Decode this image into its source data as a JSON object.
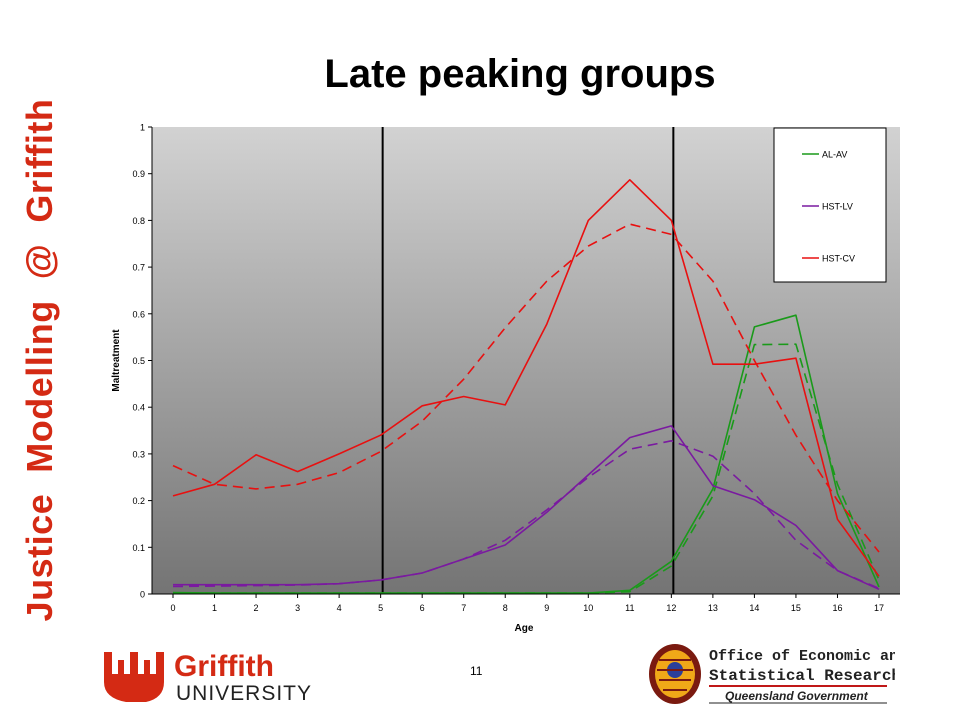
{
  "sidebar": {
    "word1": "Justice",
    "word2": "Modelling",
    "word3": "@",
    "word4": "Griffith"
  },
  "slide": {
    "title": "Late peaking groups",
    "page_number": "11"
  },
  "logos": {
    "griffith_name": "Griffith",
    "griffith_sub": "UNIVERSITY",
    "oesr_line1": "Office of Economic and",
    "oesr_line2": "Statistical Research",
    "oesr_line3": "Queensland Government"
  },
  "colors": {
    "accent_red": "#d42a14",
    "green": "#1a9a1a",
    "purple": "#7a1aa0",
    "red": "#e81010"
  },
  "chart_data": {
    "type": "line",
    "xlabel": "Age",
    "ylabel": "Maltreatment",
    "ylim": [
      0,
      1
    ],
    "y_ticks": [
      "0",
      "0.1",
      "0.2",
      "0.3",
      "0.4",
      "0.5",
      "0.6",
      "0.7",
      "0.8",
      "0.9",
      "1"
    ],
    "x": [
      0,
      1,
      2,
      3,
      4,
      5,
      6,
      7,
      8,
      9,
      10,
      11,
      12,
      13,
      14,
      15,
      16,
      17
    ],
    "x_ticks": [
      "0",
      "1",
      "2",
      "3",
      "4",
      "5",
      "6",
      "7",
      "8",
      "9",
      "10",
      "11",
      "12",
      "13",
      "14",
      "15",
      "16",
      "17"
    ],
    "vertical_markers": [
      5,
      12
    ],
    "legend_position": "top-right",
    "background": "vertical gradient from light gray to dark gray",
    "series": [
      {
        "name": "AL-AV",
        "color": "#1a9a1a",
        "style": "solid",
        "values": [
          0.003,
          0.002,
          0.002,
          0.002,
          0.002,
          0.002,
          0.002,
          0.002,
          0.002,
          0.002,
          0.002,
          0.008,
          0.07,
          0.225,
          0.572,
          0.597,
          0.215,
          0.015
        ]
      },
      {
        "name": "",
        "color": "#1a9a1a",
        "style": "dashed",
        "values": [
          0.002,
          0.002,
          0.002,
          0.002,
          0.002,
          0.002,
          0.002,
          0.002,
          0.002,
          0.002,
          0.002,
          0.005,
          0.06,
          0.21,
          0.534,
          0.535,
          0.235,
          0.03
        ]
      },
      {
        "name": "HST-LV",
        "color": "#7a1aa0",
        "style": "solid",
        "values": [
          0.02,
          0.02,
          0.02,
          0.02,
          0.022,
          0.03,
          0.045,
          0.075,
          0.105,
          0.175,
          0.255,
          0.335,
          0.36,
          0.232,
          0.202,
          0.147,
          0.05,
          0.01
        ]
      },
      {
        "name": "",
        "color": "#7a1aa0",
        "style": "dashed",
        "values": [
          0.016,
          0.017,
          0.018,
          0.019,
          0.022,
          0.03,
          0.045,
          0.075,
          0.115,
          0.18,
          0.25,
          0.31,
          0.328,
          0.295,
          0.215,
          0.115,
          0.05,
          0.012
        ]
      },
      {
        "name": "HST-CV",
        "color": "#e81010",
        "style": "solid",
        "values": [
          0.21,
          0.235,
          0.298,
          0.262,
          0.3,
          0.34,
          0.403,
          0.423,
          0.405,
          0.578,
          0.8,
          0.887,
          0.8,
          0.492,
          0.492,
          0.505,
          0.16,
          0.038
        ]
      },
      {
        "name": "",
        "color": "#e81010",
        "style": "dashed",
        "values": [
          0.275,
          0.235,
          0.225,
          0.235,
          0.26,
          0.305,
          0.37,
          0.46,
          0.57,
          0.67,
          0.745,
          0.792,
          0.77,
          0.67,
          0.5,
          0.34,
          0.2,
          0.09
        ]
      }
    ]
  }
}
